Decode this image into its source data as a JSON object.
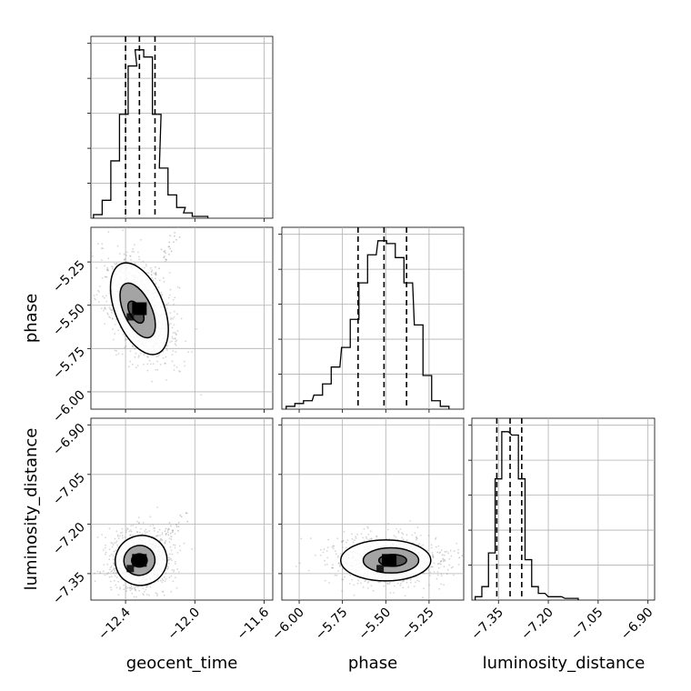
{
  "chart_data": {
    "type": "corner",
    "parameters": [
      "geocent_time",
      "phase",
      "luminosity_distance"
    ],
    "grid": true,
    "quantile_lines": "dashed",
    "panels": [
      {
        "id": "hist-geocent-time",
        "type": "histogram",
        "xlim": [
          -12.6,
          -11.55
        ],
        "bins": [
          {
            "x": -12.56,
            "count": 2
          },
          {
            "x": -12.51,
            "count": 10
          },
          {
            "x": -12.46,
            "count": 32
          },
          {
            "x": -12.41,
            "count": 58
          },
          {
            "x": -12.36,
            "count": 85
          },
          {
            "x": -12.32,
            "count": 94
          },
          {
            "x": -12.27,
            "count": 90
          },
          {
            "x": -12.22,
            "count": 58
          },
          {
            "x": -12.18,
            "count": 28
          },
          {
            "x": -12.13,
            "count": 13
          },
          {
            "x": -12.08,
            "count": 6
          },
          {
            "x": -12.04,
            "count": 3
          },
          {
            "x": -11.99,
            "count": 1
          },
          {
            "x": -11.95,
            "count": 1
          }
        ],
        "quantiles": [
          -12.4,
          -12.32,
          -12.23
        ]
      },
      {
        "id": "scatter-geocent-time-phase",
        "type": "2d-density",
        "x": "geocent_time",
        "y": "phase",
        "xlim": [
          -12.6,
          -11.55
        ],
        "ylim": [
          -6.1,
          -5.05
        ],
        "xticks": [
          -12.4,
          -12.0,
          -11.6
        ],
        "yticks": [
          -5.25,
          -5.5,
          -5.75,
          -6.0
        ],
        "center": {
          "x": -12.32,
          "y": -5.52
        },
        "contours": [
          {
            "cx": -12.34,
            "cy": -5.54,
            "rx": 0.035,
            "ry": 0.07,
            "rotation": -30
          },
          {
            "cx": -12.33,
            "cy": -5.53,
            "rx": 0.08,
            "ry": 0.17,
            "rotation": -25
          },
          {
            "cx": -12.32,
            "cy": -5.52,
            "rx": 0.14,
            "ry": 0.28,
            "rotation": -22
          }
        ]
      },
      {
        "id": "hist-phase",
        "type": "histogram",
        "xlim": [
          -6.1,
          -5.05
        ],
        "bins": [
          {
            "x": -6.05,
            "count": 1
          },
          {
            "x": -6.0,
            "count": 2
          },
          {
            "x": -5.95,
            "count": 3
          },
          {
            "x": -5.89,
            "count": 5
          },
          {
            "x": -5.84,
            "count": 9
          },
          {
            "x": -5.79,
            "count": 15
          },
          {
            "x": -5.73,
            "count": 22
          },
          {
            "x": -5.68,
            "count": 32
          },
          {
            "x": -5.63,
            "count": 45
          },
          {
            "x": -5.58,
            "count": 55
          },
          {
            "x": -5.52,
            "count": 60
          },
          {
            "x": -5.47,
            "count": 59
          },
          {
            "x": -5.42,
            "count": 54
          },
          {
            "x": -5.37,
            "count": 45
          },
          {
            "x": -5.31,
            "count": 30
          },
          {
            "x": -5.26,
            "count": 12
          },
          {
            "x": -5.21,
            "count": 3
          },
          {
            "x": -5.16,
            "count": 1
          }
        ],
        "quantiles": [
          -5.66,
          -5.51,
          -5.38
        ]
      },
      {
        "id": "scatter-geocent-time-luminosity-distance",
        "type": "2d-density",
        "x": "geocent_time",
        "y": "luminosity_distance",
        "xlim": [
          -12.6,
          -11.55
        ],
        "ylim": [
          -7.43,
          -6.88
        ],
        "xticks": [
          -12.4,
          -12.0,
          -11.6
        ],
        "yticks": [
          -6.9,
          -7.05,
          -7.2,
          -7.35
        ],
        "center": {
          "x": -12.32,
          "y": -7.31
        },
        "contours": [
          {
            "cx": -12.32,
            "cy": -7.31,
            "rx": 0.045,
            "ry": 0.02,
            "rotation": 0
          },
          {
            "cx": -12.32,
            "cy": -7.31,
            "rx": 0.09,
            "ry": 0.045,
            "rotation": -15
          },
          {
            "cx": -12.31,
            "cy": -7.31,
            "rx": 0.15,
            "ry": 0.075,
            "rotation": -20
          }
        ]
      },
      {
        "id": "scatter-phase-luminosity-distance",
        "type": "2d-density",
        "x": "phase",
        "y": "luminosity_distance",
        "xlim": [
          -6.1,
          -5.05
        ],
        "ylim": [
          -7.43,
          -6.88
        ],
        "xticks": [
          -6.0,
          -5.75,
          -5.5,
          -5.25
        ],
        "yticks": [
          -6.9,
          -7.05,
          -7.2,
          -7.35
        ],
        "center": {
          "x": -5.48,
          "y": -7.31
        },
        "contours": [
          {
            "cx": -5.46,
            "cy": -7.31,
            "rx": 0.08,
            "ry": 0.018,
            "rotation": 0
          },
          {
            "cx": -5.47,
            "cy": -7.31,
            "rx": 0.16,
            "ry": 0.038,
            "rotation": 0
          },
          {
            "cx": -5.5,
            "cy": -7.31,
            "rx": 0.26,
            "ry": 0.062,
            "rotation": 0
          }
        ]
      },
      {
        "id": "hist-luminosity-distance",
        "type": "histogram",
        "xlim": [
          -7.43,
          -6.88
        ],
        "xticks": [
          -7.35,
          -7.2,
          -7.05,
          -6.9
        ],
        "bins": [
          {
            "x": -7.41,
            "count": 1
          },
          {
            "x": -7.39,
            "count": 4
          },
          {
            "x": -7.37,
            "count": 14
          },
          {
            "x": -7.35,
            "count": 36
          },
          {
            "x": -7.33,
            "count": 50
          },
          {
            "x": -7.3,
            "count": 49
          },
          {
            "x": -7.28,
            "count": 36
          },
          {
            "x": -7.26,
            "count": 12
          },
          {
            "x": -7.24,
            "count": 4
          },
          {
            "x": -7.22,
            "count": 2
          },
          {
            "x": -7.19,
            "count": 1
          },
          {
            "x": -7.17,
            "count": 1
          },
          {
            "x": -7.14,
            "count": 0.5
          },
          {
            "x": -7.12,
            "count": 0.5
          }
        ],
        "quantiles": [
          -7.355,
          -7.315,
          -7.28
        ]
      }
    ]
  }
}
